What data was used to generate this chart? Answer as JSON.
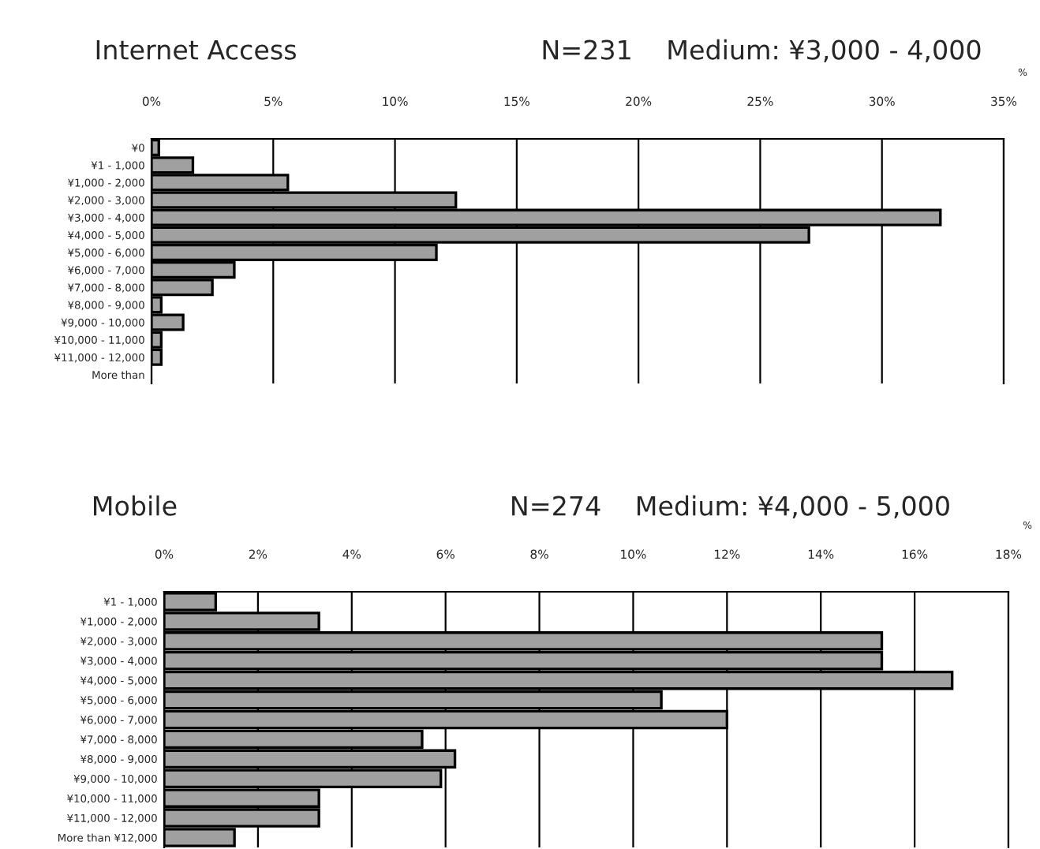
{
  "chart_data": [
    {
      "type": "bar",
      "orientation": "horizontal",
      "title": "Internet Access",
      "subtitle": "N=231    Medium: ¥3,000 - 4,000",
      "annotations": [
        "%"
      ],
      "categories": [
        "¥0",
        "¥1 - 1,000",
        "¥1,000 - 2,000",
        "¥2,000 - 3,000",
        "¥3,000 - 4,000",
        "¥4,000 - 5,000",
        "¥5,000 - 6,000",
        "¥6,000 - 7,000",
        "¥7,000 - 8,000",
        "¥8,000 - 9,000",
        "¥9,000 - 10,000",
        "¥10,000 - 11,000",
        "¥11,000 - 12,000",
        "More than"
      ],
      "values": [
        0.3,
        1.7,
        5.6,
        12.5,
        32.4,
        27.0,
        11.7,
        3.4,
        2.5,
        0.4,
        1.3,
        0.4,
        0.4,
        0
      ],
      "color": "#a0a0a0",
      "xlim": [
        0,
        35
      ],
      "xticks": [
        {
          "value": 0,
          "label": "0%"
        },
        {
          "value": 5,
          "label": "5%"
        },
        {
          "value": 10,
          "label": "10%"
        },
        {
          "value": 15,
          "label": "15%"
        },
        {
          "value": 20,
          "label": "20%"
        },
        {
          "value": 25,
          "label": "25%"
        },
        {
          "value": 30,
          "label": "30%"
        },
        {
          "value": 35,
          "label": "35%"
        }
      ],
      "grid": "x",
      "legend": false
    },
    {
      "type": "bar",
      "orientation": "horizontal",
      "title": "Mobile",
      "subtitle": "N=274    Medium: ¥4,000 - 5,000",
      "annotations": [
        "%"
      ],
      "categories": [
        "¥1 - 1,000",
        "¥1,000 - 2,000",
        "¥2,000 - 3,000",
        "¥3,000 - 4,000",
        "¥4,000 - 5,000",
        "¥5,000 - 6,000",
        "¥6,000 - 7,000",
        "¥7,000 - 8,000",
        "¥8,000 - 9,000",
        "¥9,000 - 10,000",
        "¥10,000 - 11,000",
        "¥11,000 - 12,000",
        "More than ¥12,000"
      ],
      "values": [
        1.1,
        3.3,
        15.3,
        15.3,
        16.8,
        10.6,
        12.0,
        5.5,
        6.2,
        5.9,
        3.3,
        3.3,
        1.5
      ],
      "color": "#a0a0a0",
      "xlim": [
        0,
        18
      ],
      "xticks": [
        {
          "value": 0,
          "label": "0%"
        },
        {
          "value": 2,
          "label": "2%"
        },
        {
          "value": 4,
          "label": "4%"
        },
        {
          "value": 6,
          "label": "6%"
        },
        {
          "value": 8,
          "label": "8%"
        },
        {
          "value": 10,
          "label": "10%"
        },
        {
          "value": 12,
          "label": "12%"
        },
        {
          "value": 14,
          "label": "14%"
        },
        {
          "value": 16,
          "label": "16%"
        },
        {
          "value": 18,
          "label": "18%"
        }
      ],
      "grid": "x",
      "legend": false
    }
  ]
}
